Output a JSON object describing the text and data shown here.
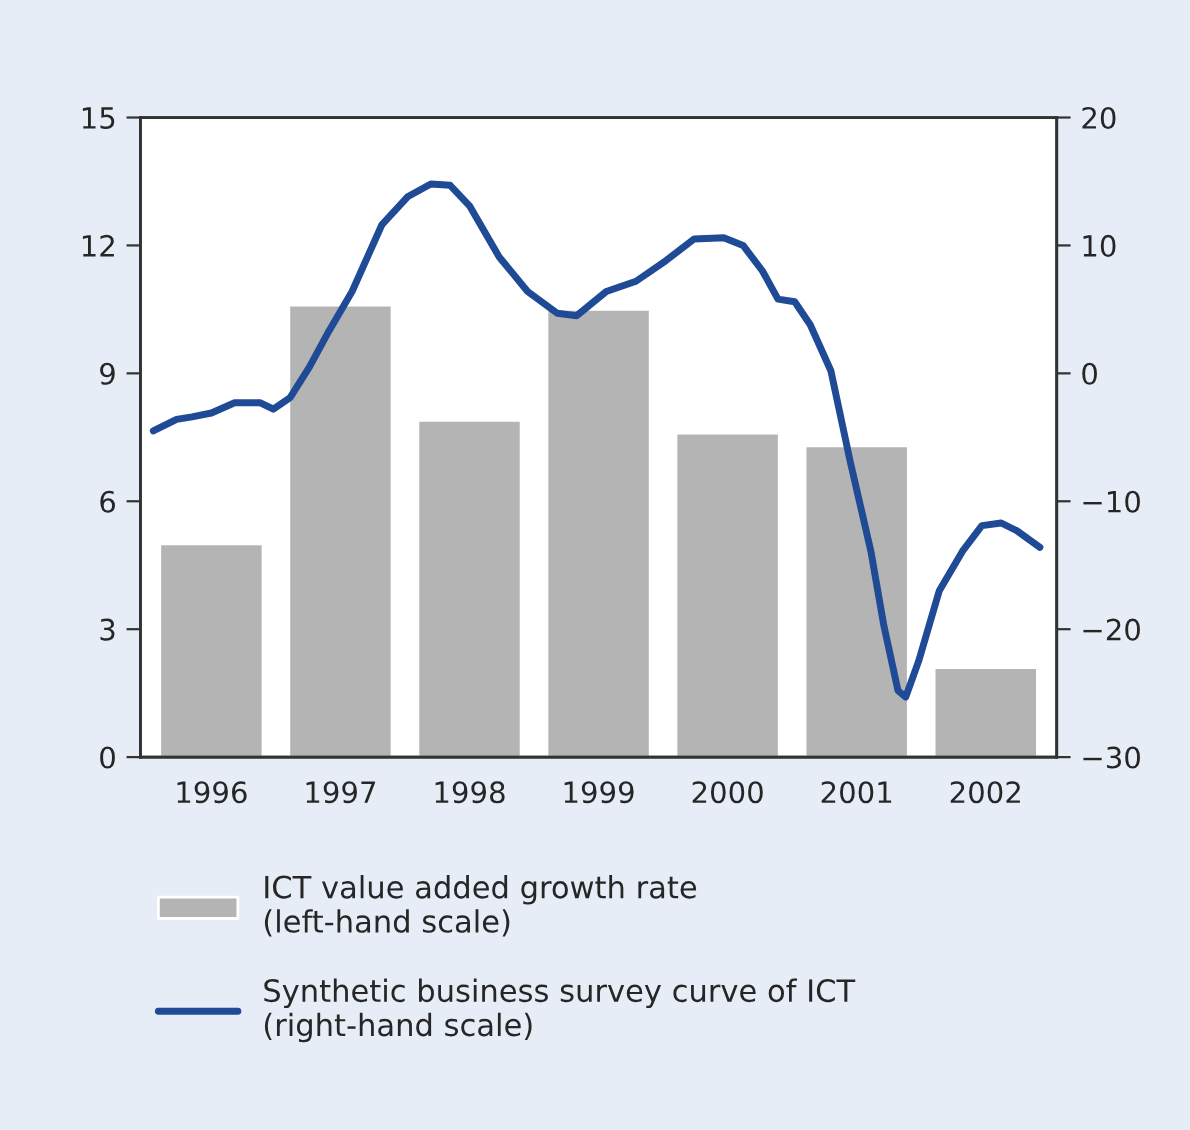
{
  "chart_data": {
    "type": "bar",
    "x": [
      1996,
      1997,
      1998,
      1999,
      2000,
      2001,
      2002
    ],
    "xlim": [
      1995.45,
      2002.55
    ],
    "xticks": [
      1996,
      1997,
      1998,
      1999,
      2000,
      2001,
      2002
    ],
    "ylim": [
      0,
      15
    ],
    "yticks": [
      0,
      3,
      6,
      9,
      12,
      15
    ],
    "y2lim": [
      -30,
      20
    ],
    "y2ticks": [
      {
        "value": -30,
        "label": "−30"
      },
      {
        "value": -20,
        "label": "−20"
      },
      {
        "value": -10,
        "label": "−10"
      },
      0,
      10,
      20
    ],
    "legend": "bottom",
    "grid": false,
    "series": [
      {
        "name": "ICT value added growth rate\n(left-hand scale)",
        "color": "#b4b4b4",
        "values": [
          5.0,
          10.6,
          7.9,
          10.5,
          7.6,
          7.3,
          2.1
        ]
      },
      {
        "name": "Synthetic business survey curve of ICT\n(right-hand scale)",
        "type": "line",
        "axis": "y2",
        "color": "#1f4a96",
        "x": [
          1995.55,
          1995.73,
          1995.85,
          1996.0,
          1996.18,
          1996.38,
          1996.48,
          1996.61,
          1996.76,
          1996.91,
          1997.09,
          1997.32,
          1997.52,
          1997.7,
          1997.85,
          1998.0,
          1998.23,
          1998.45,
          1998.68,
          1998.83,
          1999.06,
          1999.29,
          1999.52,
          1999.74,
          1999.97,
          2000.12,
          2000.27,
          2000.39,
          2000.52,
          2000.64,
          2000.8,
          2000.95,
          2001.11,
          2001.21,
          2001.32,
          2001.38,
          2001.48,
          2001.64,
          2001.82,
          2001.97,
          2002.12,
          2002.24,
          2002.42
        ],
        "values": [
          -4.5,
          -3.6,
          -3.4,
          -3.1,
          -2.3,
          -2.3,
          -2.8,
          -1.9,
          0.5,
          3.3,
          6.4,
          11.6,
          13.8,
          14.8,
          14.7,
          13.1,
          9.1,
          6.4,
          4.7,
          4.5,
          6.4,
          7.2,
          8.8,
          10.5,
          10.6,
          10.0,
          8.0,
          5.8,
          5.6,
          3.8,
          0.2,
          -6.9,
          -13.9,
          -19.7,
          -24.8,
          -25.3,
          -22.5,
          -17.0,
          -13.9,
          -11.9,
          -11.7,
          -12.3,
          -13.6
        ]
      }
    ]
  }
}
